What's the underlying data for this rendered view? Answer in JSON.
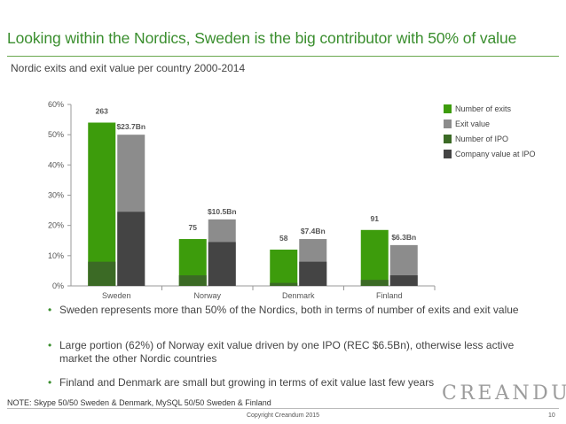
{
  "slide": {
    "title": "Looking within the Nordics, Sweden is the big contributor with 50% of value",
    "subtitle": "Nordic exits and exit value per country 2000-2014",
    "note": "NOTE: Skype 50/50 Sweden & Denmark, MySQL 50/50 Sweden & Finland",
    "copyright": "Copyright Creandum 2015",
    "page_number": "10",
    "logo": "CREANDUM"
  },
  "legend": [
    {
      "label": "Number of exits",
      "color": "#3d9c0c"
    },
    {
      "label": "Exit value",
      "color": "#8c8c8c"
    },
    {
      "label": "Number of IPO",
      "color": "#3b6a25"
    },
    {
      "label": "Company value at IPO",
      "color": "#444444"
    }
  ],
  "bullets": [
    "Sweden represents more than 50% of the Nordics, both in terms of number of exits and exit value",
    "Large portion (62%) of Norway exit value driven by one IPO (REC $6.5Bn), otherwise less active market the other Nordic countries",
    "Finland and Denmark are small but growing in terms of exit value last few years"
  ],
  "chart_data": {
    "type": "bar",
    "subtype": "grouped-overlay",
    "categories": [
      "Sweden",
      "Norway",
      "Denmark",
      "Finland"
    ],
    "y_ticks": [
      "0%",
      "10%",
      "20%",
      "30%",
      "40%",
      "50%",
      "60%"
    ],
    "ylim": [
      0,
      60
    ],
    "series": [
      {
        "name": "Number of exits",
        "color": "#3d9c0c",
        "values": [
          54,
          15.5,
          12,
          18.5
        ],
        "labels": [
          "263",
          "75",
          "58",
          "91"
        ]
      },
      {
        "name": "Exit value",
        "color": "#8c8c8c",
        "values": [
          50,
          22,
          15.5,
          13.5
        ],
        "labels": [
          "$23.7Bn",
          "$10.5Bn",
          "$7.4Bn",
          "$6.3Bn"
        ]
      },
      {
        "name": "Number of IPO",
        "color": "#3b6a25",
        "values": [
          8,
          3.5,
          1,
          2
        ],
        "labels": []
      },
      {
        "name": "Company value at IPO",
        "color": "#444444",
        "values": [
          24.5,
          14.5,
          8,
          3.5
        ],
        "labels": []
      }
    ],
    "grid": false
  }
}
